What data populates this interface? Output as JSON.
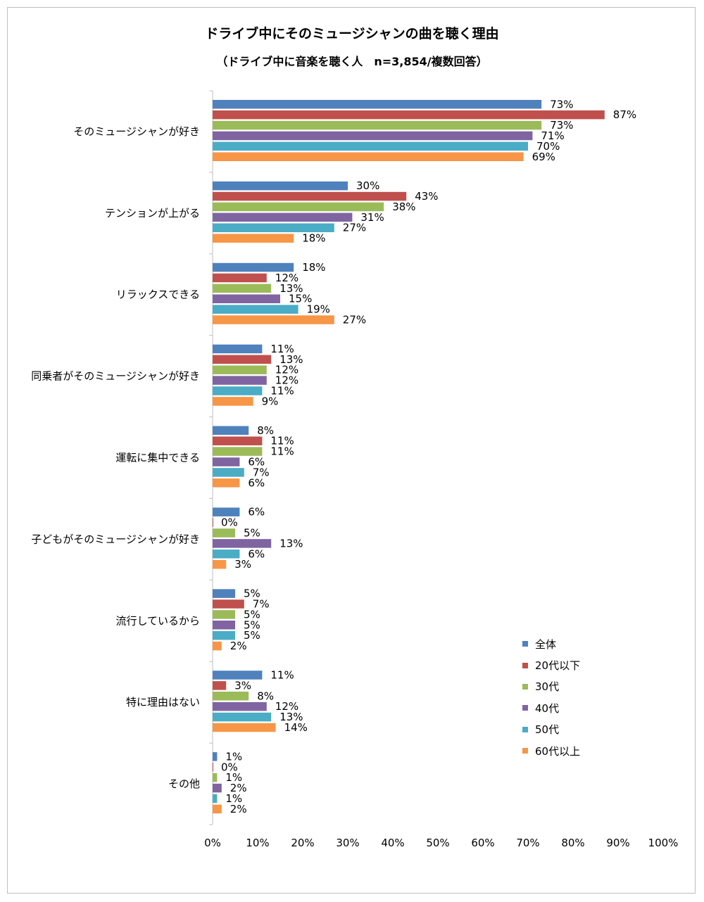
{
  "chart_data": {
    "type": "bar",
    "orientation": "horizontal",
    "title": "ドライブ中にそのミュージシャンの曲を聴く理由",
    "subtitle": "（ドライブ中に音楽を聴く人　n=3,854/複数回答）",
    "categories": [
      "そのミュージシャンが好き",
      "テンションが上がる",
      "リラックスできる",
      "同乗者がそのミュージシャンが好き",
      "運転に集中できる",
      "子どもがそのミュージシャンが好き",
      "流行しているから",
      "特に理由はない",
      "その他"
    ],
    "series": [
      {
        "name": "全体",
        "color": "#4f81bd",
        "values": [
          73,
          30,
          18,
          11,
          8,
          6,
          5,
          11,
          1
        ],
        "labels": [
          "73%",
          "30%",
          "18%",
          "11%",
          "8%",
          "6%",
          "5%",
          "11%",
          "1%"
        ]
      },
      {
        "name": "20代以下",
        "color": "#c0504d",
        "values": [
          87,
          43,
          12,
          13,
          11,
          0,
          7,
          3,
          0
        ],
        "labels": [
          "87%",
          "43%",
          "12%",
          "13%",
          "11%",
          "0%",
          "7%",
          "3%",
          "0%"
        ]
      },
      {
        "name": "30代",
        "color": "#9bbb59",
        "values": [
          73,
          38,
          13,
          12,
          11,
          5,
          5,
          8,
          1
        ],
        "labels": [
          "73%",
          "38%",
          "13%",
          "12%",
          "11%",
          "5%",
          "5%",
          "8%",
          "1%"
        ]
      },
      {
        "name": "40代",
        "color": "#8064a2",
        "values": [
          71,
          31,
          15,
          12,
          6,
          13,
          5,
          12,
          2
        ],
        "labels": [
          "71%",
          "31%",
          "15%",
          "12%",
          "6%",
          "13%",
          "5%",
          "12%",
          "2%"
        ]
      },
      {
        "name": "50代",
        "color": "#4bacc6",
        "values": [
          70,
          27,
          19,
          11,
          7,
          6,
          5,
          13,
          1
        ],
        "labels": [
          "70%",
          "27%",
          "19%",
          "11%",
          "7%",
          "6%",
          "5%",
          "13%",
          "1%"
        ]
      },
      {
        "name": "60代以上",
        "color": "#f79646",
        "values": [
          69,
          18,
          27,
          9,
          6,
          3,
          2,
          14,
          2
        ],
        "labels": [
          "69%",
          "18%",
          "27%",
          "9%",
          "6%",
          "3%",
          "2%",
          "14%",
          "2%"
        ]
      }
    ],
    "xlim": [
      0,
      100
    ],
    "xticks": [
      "0%",
      "10%",
      "20%",
      "30%",
      "40%",
      "50%",
      "60%",
      "70%",
      "80%",
      "90%",
      "100%"
    ],
    "grid": false,
    "legend_position": "right"
  }
}
